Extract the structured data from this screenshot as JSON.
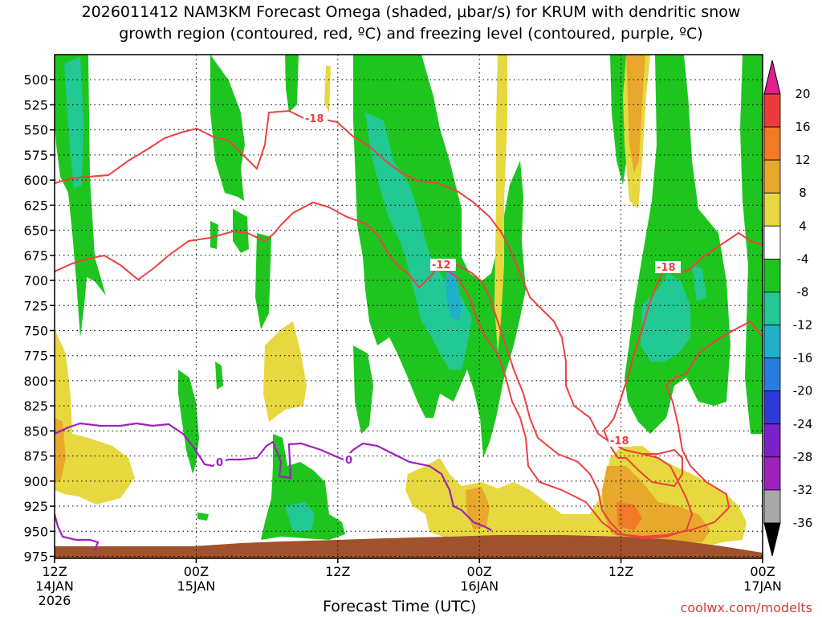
{
  "title": {
    "line1": "2026011412 NAM3KM Forecast Omega (shaded, μbar/s) for KRUM with dendritic snow",
    "line2": "growth region (contoured, red, ºC) and freezing level (contoured, purple, ºC)"
  },
  "credit": "coolwx.com/modelts",
  "chart_data": {
    "type": "heatmap",
    "title": "2026011412 NAM3KM Forecast Omega (shaded, μbar/s) for KRUM with dendritic snow growth region (contoured, red, ºC) and freezing level (contoured, purple, ºC)",
    "xlabel": "Forecast Time (UTC)",
    "ylabel": "",
    "x_ticks": [
      {
        "hour": 0,
        "line1": "12Z",
        "line2": "14JAN",
        "line3": "2026"
      },
      {
        "hour": 12,
        "line1": "00Z",
        "line2": "15JAN",
        "line3": ""
      },
      {
        "hour": 24,
        "line1": "12Z",
        "line2": "",
        "line3": ""
      },
      {
        "hour": 36,
        "line1": "00Z",
        "line2": "16JAN",
        "line3": ""
      },
      {
        "hour": 48,
        "line1": "12Z",
        "line2": "",
        "line3": ""
      },
      {
        "hour": 60,
        "line1": "00Z",
        "line2": "17JAN",
        "line3": ""
      }
    ],
    "xlim": [
      0,
      60
    ],
    "y_ticks": [
      500,
      525,
      550,
      575,
      600,
      625,
      650,
      675,
      700,
      725,
      750,
      775,
      800,
      825,
      850,
      875,
      900,
      925,
      950,
      975
    ],
    "ylim": [
      977,
      475
    ],
    "colorbar": {
      "labels": [
        "20",
        "16",
        "12",
        "8",
        "4",
        "-4",
        "-8",
        "-12",
        "-16",
        "-20",
        "-24",
        "-28",
        "-32",
        "-36"
      ],
      "colors": [
        "#ee3a3a",
        "#f07a26",
        "#e8a82c",
        "#e6d83e",
        "#ffffff",
        "#1fc51f",
        "#21c894",
        "#1fb0c8",
        "#2b7ce0",
        "#2f3ad6",
        "#7a22c8",
        "#a020c0",
        "#a8a8a8"
      ],
      "top_arrow_color": "#e0208a",
      "bottom_arrow_color": "#000000"
    },
    "contour_labels": {
      "red": [
        "-18",
        "-12",
        "-18",
        "-18"
      ],
      "purple": [
        "0",
        "0"
      ]
    },
    "ground_color": "#a0522d"
  }
}
